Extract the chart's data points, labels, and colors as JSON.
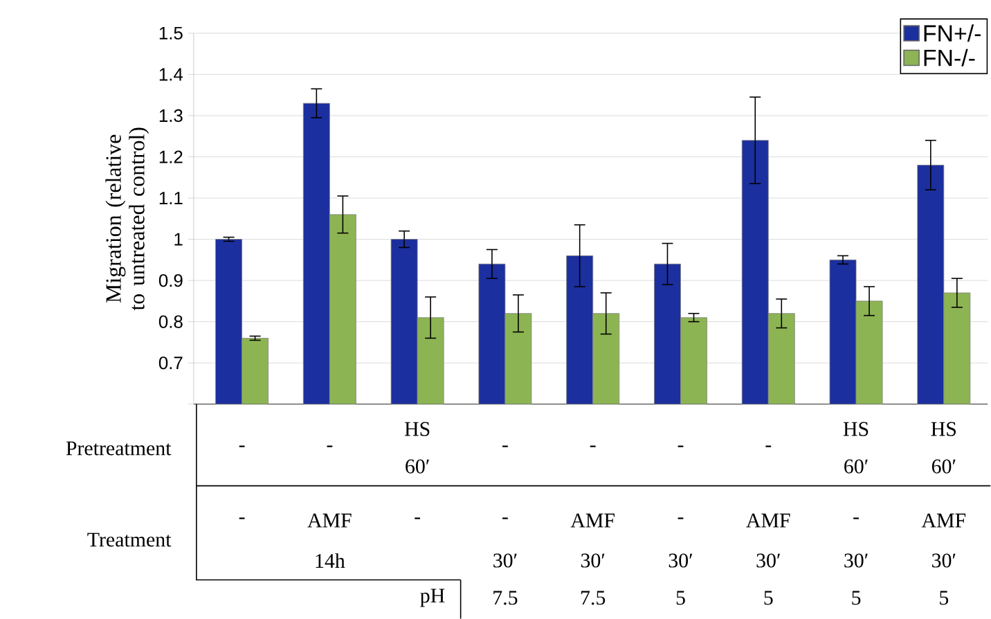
{
  "chart_data": {
    "type": "bar",
    "ylabel": "Migration (relative to untreated control)",
    "categories": [
      null,
      null,
      null,
      null,
      null,
      null,
      null,
      null,
      null
    ],
    "series": [
      {
        "name": "FN+/-",
        "color": "#1c2f9e",
        "values": [
          1.0,
          1.33,
          1.0,
          0.94,
          0.96,
          0.94,
          1.24,
          0.95,
          1.18
        ],
        "errors": [
          0.005,
          0.035,
          0.02,
          0.035,
          0.075,
          0.05,
          0.105,
          0.01,
          0.06
        ]
      },
      {
        "name": "FN-/-",
        "color": "#8db453",
        "values": [
          0.76,
          1.06,
          0.81,
          0.82,
          0.82,
          0.81,
          0.82,
          0.85,
          0.87
        ],
        "errors": [
          0.005,
          0.045,
          0.05,
          0.045,
          0.05,
          0.01,
          0.035,
          0.035,
          0.035
        ]
      }
    ],
    "ylim": [
      0.6,
      1.5
    ],
    "yticks": [
      {
        "value": 0.6,
        "label": null
      },
      0.7,
      0.8,
      0.9,
      {
        "value": 1.0,
        "label": "1"
      },
      1.1,
      1.2,
      1.3,
      1.4,
      1.5
    ],
    "grid": "y",
    "legend": "top right",
    "annotations": [
      "Pretreatment",
      "Treatment",
      "pH",
      "-",
      "-",
      "HS",
      "60′",
      "-",
      "-",
      "-",
      "-",
      "HS",
      "60′",
      "HS",
      "60′",
      "-",
      "AMF",
      "14h",
      "-",
      "-",
      "30′",
      "AMF",
      "30′",
      "-",
      "30′",
      "AMF",
      "30′",
      "-",
      "30′",
      "AMF",
      "30′",
      "7.5",
      "7.5",
      "5",
      "5",
      "5",
      "5"
    ]
  }
}
